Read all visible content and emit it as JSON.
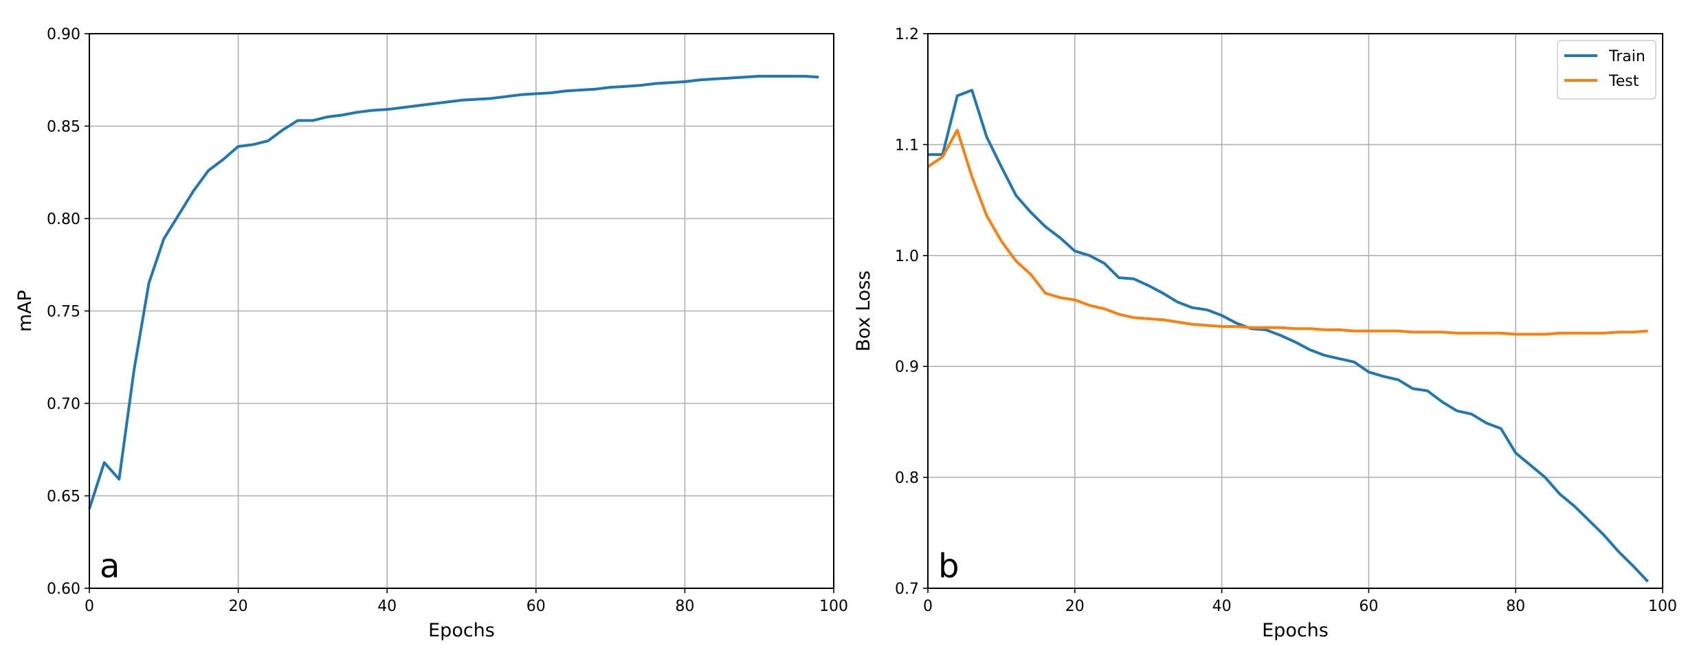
{
  "chart_data": [
    {
      "type": "line",
      "panel_label": "a",
      "title": "",
      "xlabel": "Epochs",
      "ylabel": "mAP",
      "xlim": [
        0,
        100
      ],
      "ylim": [
        0.6,
        0.9
      ],
      "xticks": [
        "0",
        "20",
        "40",
        "60",
        "80",
        "100"
      ],
      "yticks": [
        "0.60",
        "0.65",
        "0.70",
        "0.75",
        "0.80",
        "0.85",
        "0.90"
      ],
      "grid": true,
      "legend": null,
      "series": [
        {
          "color": "#1f77b4",
          "x": [
            0,
            2,
            4,
            6,
            8,
            10,
            12,
            14,
            16,
            18,
            20,
            22,
            24,
            26,
            28,
            30,
            32,
            34,
            36,
            38,
            40,
            42,
            44,
            46,
            48,
            50,
            52,
            54,
            56,
            58,
            60,
            62,
            64,
            66,
            68,
            70,
            72,
            74,
            76,
            78,
            80,
            82,
            84,
            86,
            88,
            90,
            92,
            94,
            96,
            98
          ],
          "values": [
            0.643,
            0.668,
            0.659,
            0.718,
            0.765,
            0.789,
            0.802,
            0.815,
            0.826,
            0.832,
            0.839,
            0.84,
            0.842,
            0.848,
            0.853,
            0.853,
            0.855,
            0.856,
            0.8575,
            0.8585,
            0.859,
            0.86,
            0.861,
            0.862,
            0.863,
            0.864,
            0.8645,
            0.865,
            0.866,
            0.867,
            0.8675,
            0.868,
            0.869,
            0.8695,
            0.87,
            0.871,
            0.8715,
            0.872,
            0.873,
            0.8735,
            0.874,
            0.875,
            0.8755,
            0.876,
            0.8765,
            0.877,
            0.877,
            0.877,
            0.877,
            0.8765
          ]
        }
      ]
    },
    {
      "type": "line",
      "panel_label": "b",
      "title": "",
      "xlabel": "Epochs",
      "ylabel": "Box Loss",
      "xlim": [
        0,
        100
      ],
      "ylim": [
        0.7,
        1.2
      ],
      "xticks": [
        "0",
        "20",
        "40",
        "60",
        "80",
        "100"
      ],
      "yticks": [
        "0.7",
        "0.8",
        "0.9",
        "1.0",
        "1.1",
        "1.2"
      ],
      "grid": true,
      "legend": "top-right",
      "series": [
        {
          "name": "Train",
          "color": "#1f77b4",
          "x": [
            0,
            2,
            4,
            6,
            8,
            10,
            12,
            14,
            16,
            18,
            20,
            22,
            24,
            26,
            28,
            30,
            32,
            34,
            36,
            38,
            40,
            42,
            44,
            46,
            48,
            50,
            52,
            54,
            56,
            58,
            60,
            62,
            64,
            66,
            68,
            70,
            72,
            74,
            76,
            78,
            80,
            82,
            84,
            86,
            88,
            90,
            92,
            94,
            96,
            98
          ],
          "values": [
            1.091,
            1.091,
            1.144,
            1.149,
            1.107,
            1.08,
            1.054,
            1.039,
            1.026,
            1.016,
            1.004,
            1.0,
            0.993,
            0.98,
            0.979,
            0.973,
            0.966,
            0.958,
            0.953,
            0.951,
            0.946,
            0.939,
            0.934,
            0.933,
            0.928,
            0.922,
            0.915,
            0.91,
            0.907,
            0.904,
            0.895,
            0.891,
            0.888,
            0.88,
            0.878,
            0.868,
            0.86,
            0.857,
            0.849,
            0.844,
            0.822,
            0.811,
            0.8,
            0.785,
            0.774,
            0.761,
            0.748,
            0.733,
            0.72,
            0.706
          ]
        },
        {
          "name": "Test",
          "color": "#ff7f0e",
          "x": [
            0,
            2,
            4,
            6,
            8,
            10,
            12,
            14,
            16,
            18,
            20,
            22,
            24,
            26,
            28,
            30,
            32,
            34,
            36,
            38,
            40,
            42,
            44,
            46,
            48,
            50,
            52,
            54,
            56,
            58,
            60,
            62,
            64,
            66,
            68,
            70,
            72,
            74,
            76,
            78,
            80,
            82,
            84,
            86,
            88,
            90,
            92,
            94,
            96,
            98
          ],
          "values": [
            1.08,
            1.089,
            1.113,
            1.071,
            1.036,
            1.013,
            0.995,
            0.983,
            0.966,
            0.962,
            0.96,
            0.955,
            0.952,
            0.947,
            0.944,
            0.943,
            0.942,
            0.94,
            0.938,
            0.937,
            0.936,
            0.936,
            0.935,
            0.935,
            0.935,
            0.934,
            0.934,
            0.933,
            0.933,
            0.932,
            0.932,
            0.932,
            0.932,
            0.931,
            0.931,
            0.931,
            0.93,
            0.93,
            0.93,
            0.93,
            0.929,
            0.929,
            0.929,
            0.93,
            0.93,
            0.93,
            0.93,
            0.931,
            0.931,
            0.932
          ]
        }
      ]
    }
  ]
}
